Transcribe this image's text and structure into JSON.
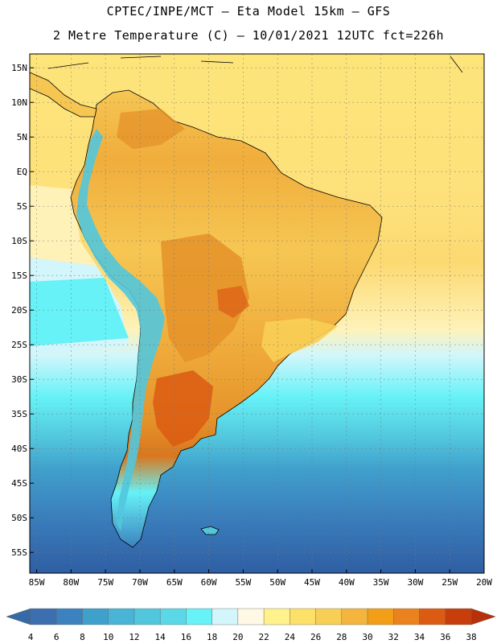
{
  "header": {
    "line1": "CPTEC/INPE/MCT –  Eta Model 15km – GFS",
    "line2": "2 Metre Temperature (C) – 10/01/2021 12UTC fct=226h"
  },
  "map": {
    "region": "South America",
    "lat_range": [
      -58,
      17
    ],
    "lon_range": [
      -86,
      -20
    ],
    "lat_labels": [
      "15N",
      "10N",
      "5N",
      "EQ",
      "5S",
      "10S",
      "15S",
      "20S",
      "25S",
      "30S",
      "35S",
      "40S",
      "45S",
      "50S",
      "55S"
    ],
    "lat_values": [
      15,
      10,
      5,
      0,
      -5,
      -10,
      -15,
      -20,
      -25,
      -30,
      -35,
      -40,
      -45,
      -50,
      -55
    ],
    "lon_labels": [
      "85W",
      "80W",
      "75W",
      "70W",
      "65W",
      "60W",
      "55W",
      "50W",
      "45W",
      "40W",
      "35W",
      "30W",
      "25W",
      "20W"
    ],
    "lon_values": [
      -85,
      -80,
      -75,
      -70,
      -65,
      -60,
      -55,
      -50,
      -45,
      -40,
      -35,
      -30,
      -25,
      -20
    ]
  },
  "colorbar": {
    "levels": [
      "4",
      "6",
      "8",
      "10",
      "12",
      "14",
      "16",
      "18",
      "20",
      "22",
      "24",
      "26",
      "28",
      "30",
      "32",
      "34",
      "36",
      "38"
    ],
    "colors": [
      "#3d6fb0",
      "#3b82bf",
      "#40a0cc",
      "#4ab4d6",
      "#52c6dd",
      "#5bd8e8",
      "#66f2f7",
      "#d2f6fb",
      "#fff8e4",
      "#fff18c",
      "#fde068",
      "#f8cf55",
      "#f3b53e",
      "#f29f17",
      "#ea821d",
      "#dc5b12",
      "#c73d0b"
    ],
    "low_color": "#356aa8",
    "high_color": "#b7300a"
  }
}
